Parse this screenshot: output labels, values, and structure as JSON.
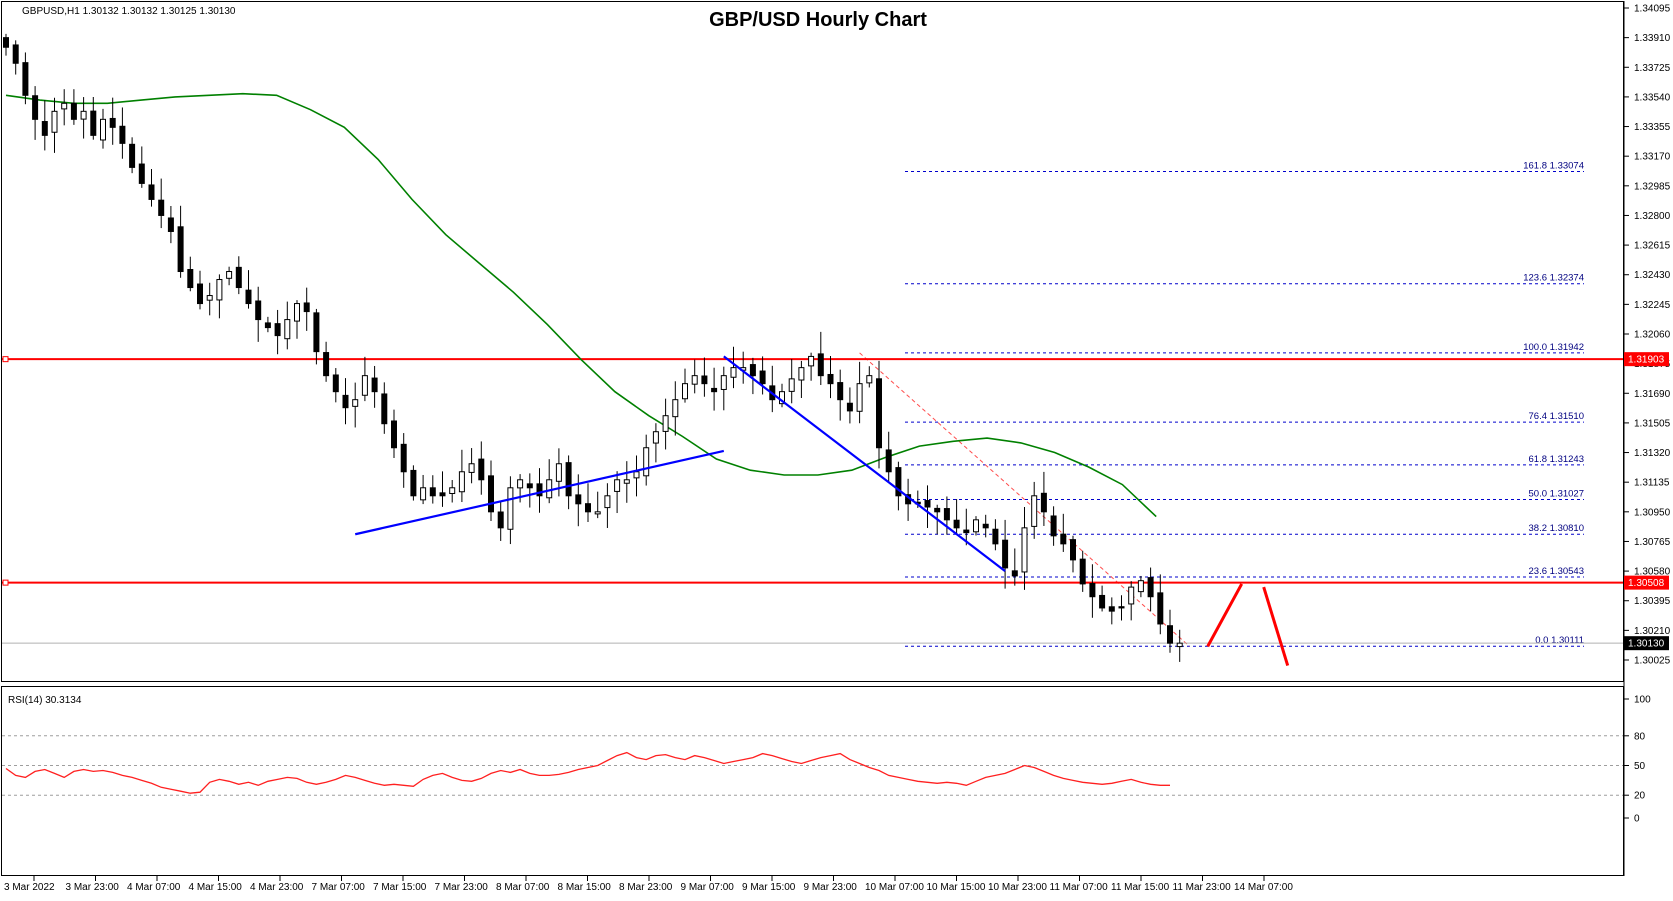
{
  "header": {
    "symbol_info": "GBPUSD,H1  1.30132 1.30132 1.30125 1.30130",
    "title": "GBP/USD Hourly Chart"
  },
  "chart_data": {
    "type": "candlestick",
    "title": "GBP/USD Hourly Chart",
    "price_axis": {
      "ticks": [
        "1.34095",
        "1.33910",
        "1.33725",
        "1.33540",
        "1.33355",
        "1.33170",
        "1.32985",
        "1.32800",
        "1.32615",
        "1.32430",
        "1.32245",
        "1.32060",
        "1.31875",
        "1.31690",
        "1.31505",
        "1.31320",
        "1.31135",
        "1.30950",
        "1.30765",
        "1.30580",
        "1.30395",
        "1.30210",
        "1.30025"
      ],
      "range": [
        1.30025,
        1.34095
      ]
    },
    "time_axis": {
      "labels": [
        "3 Mar 2022",
        "3 Mar 23:00",
        "4 Mar 07:00",
        "4 Mar 15:00",
        "4 Mar 23:00",
        "7 Mar 07:00",
        "7 Mar 15:00",
        "7 Mar 23:00",
        "8 Mar 07:00",
        "8 Mar 15:00",
        "8 Mar 23:00",
        "9 Mar 07:00",
        "9 Mar 15:00",
        "9 Mar 23:00",
        "10 Mar 07:00",
        "10 Mar 15:00",
        "10 Mar 23:00",
        "11 Mar 07:00",
        "11 Mar 15:00",
        "11 Mar 23:00",
        "14 Mar 07:00"
      ]
    },
    "price_path": [
      1.3385,
      1.3375,
      1.3355,
      1.334,
      1.333,
      1.3345,
      1.335,
      1.334,
      1.3345,
      1.333,
      1.334,
      1.3335,
      1.3325,
      1.331,
      1.33,
      1.329,
      1.328,
      1.327,
      1.3245,
      1.3235,
      1.3225,
      1.323,
      1.324,
      1.3245,
      1.3235,
      1.3225,
      1.3215,
      1.321,
      1.3205,
      1.3215,
      1.3225,
      1.322,
      1.3195,
      1.318,
      1.317,
      1.316,
      1.3165,
      1.318,
      1.317,
      1.315,
      1.3135,
      1.312,
      1.3105,
      1.311,
      1.3105,
      1.3105,
      1.311,
      1.312,
      1.3125,
      1.3115,
      1.3095,
      1.3085,
      1.311,
      1.3115,
      1.311,
      1.3105,
      1.3115,
      1.3125,
      1.3105,
      1.31,
      1.3095,
      1.3095,
      1.3105,
      1.3115,
      1.3115,
      1.312,
      1.3135,
      1.3145,
      1.3155,
      1.3165,
      1.3175,
      1.318,
      1.3175,
      1.317,
      1.318,
      1.3185,
      1.3185,
      1.318,
      1.3175,
      1.3165,
      1.317,
      1.3178,
      1.3185,
      1.3192,
      1.318,
      1.3175,
      1.3165,
      1.3158,
      1.3175,
      1.318,
      1.3135,
      1.312,
      1.3105,
      1.31,
      1.31,
      1.3098,
      1.3095,
      1.309,
      1.3085,
      1.3082,
      1.309,
      1.3085,
      1.3075,
      1.306,
      1.3055,
      1.3085,
      1.3105,
      1.3095,
      1.308,
      1.3075,
      1.3065,
      1.305,
      1.3042,
      1.3035,
      1.3033,
      1.3035,
      1.3048,
      1.3052,
      1.3042,
      1.3025,
      1.3013,
      1.3013
    ],
    "series": [
      {
        "name": "",
        "kind": "moving_average",
        "color": "#008000",
        "values": [
          1.3355,
          1.3352,
          1.335,
          1.335,
          1.3352,
          1.3354,
          1.3355,
          1.3356,
          1.3355,
          1.3346,
          1.3335,
          1.3315,
          1.329,
          1.3268,
          1.325,
          1.3232,
          1.3212,
          1.319,
          1.317,
          1.3155,
          1.3142,
          1.3128,
          1.3121,
          1.3118,
          1.3118,
          1.3121,
          1.3129,
          1.3136,
          1.3139,
          1.3141,
          1.3138,
          1.3132,
          1.3123,
          1.3112,
          1.3092
        ]
      }
    ],
    "indicator": {
      "label": "RSI(14) 30.3134",
      "levels": [
        "100",
        "80",
        "50",
        "20",
        "0"
      ],
      "values": [
        47,
        40,
        38,
        44,
        46,
        42,
        38,
        44,
        46,
        44,
        45,
        43,
        40,
        38,
        35,
        32,
        28,
        26,
        24,
        22,
        23,
        33,
        36,
        34,
        31,
        33,
        30,
        34,
        36,
        38,
        37,
        33,
        31,
        33,
        36,
        40,
        38,
        35,
        32,
        30,
        31,
        30,
        29,
        36,
        40,
        42,
        38,
        35,
        34,
        37,
        42,
        45,
        43,
        46,
        42,
        40,
        40,
        41,
        43,
        46,
        48,
        50,
        55,
        60,
        63,
        58,
        56,
        60,
        61,
        58,
        56,
        60,
        58,
        55,
        52,
        54,
        56,
        58,
        62,
        60,
        57,
        54,
        52,
        55,
        58,
        60,
        62,
        56,
        52,
        48,
        45,
        40,
        38,
        36,
        34,
        33,
        32,
        33,
        32,
        30,
        34,
        38,
        40,
        42,
        46,
        50,
        48,
        44,
        40,
        37,
        35,
        33,
        32,
        31,
        32,
        34,
        36,
        33,
        31,
        30,
        30
      ],
      "ylim": [
        0,
        100
      ]
    },
    "annotations": {
      "horizontal_levels": [
        {
          "price": 1.31903,
          "label": "1.31903",
          "color": "#ff0000"
        },
        {
          "price": 1.30508,
          "label": "1.30508",
          "color": "#ff0000"
        }
      ],
      "fibonacci": [
        {
          "label": "161.8 1.33074",
          "price": 1.33074
        },
        {
          "label": "123.6 1.32374",
          "price": 1.32374
        },
        {
          "label": "100.0 1.31942",
          "price": 1.31942
        },
        {
          "label": "76.4 1.31510",
          "price": 1.3151
        },
        {
          "label": "61.8 1.31243",
          "price": 1.31243
        },
        {
          "label": "50.0 1.31027",
          "price": 1.31027
        },
        {
          "label": "38.2 1.30810",
          "price": 1.3081
        },
        {
          "label": "23.6 1.30543",
          "price": 1.30543
        },
        {
          "label": "0.0 1.30111",
          "price": 1.30111
        }
      ],
      "current_price": {
        "price": 1.3013,
        "label": "1.30130"
      },
      "trendlines": [
        {
          "name": "support-trendline",
          "color": "#0000ff",
          "from": [
            36,
            1.3081
          ],
          "to": [
            74,
            1.3133
          ]
        },
        {
          "name": "resistance-trendline",
          "color": "#0000ff",
          "from": [
            74,
            1.3192
          ],
          "to": [
            103,
            1.3058
          ]
        }
      ]
    },
    "grid": false
  }
}
